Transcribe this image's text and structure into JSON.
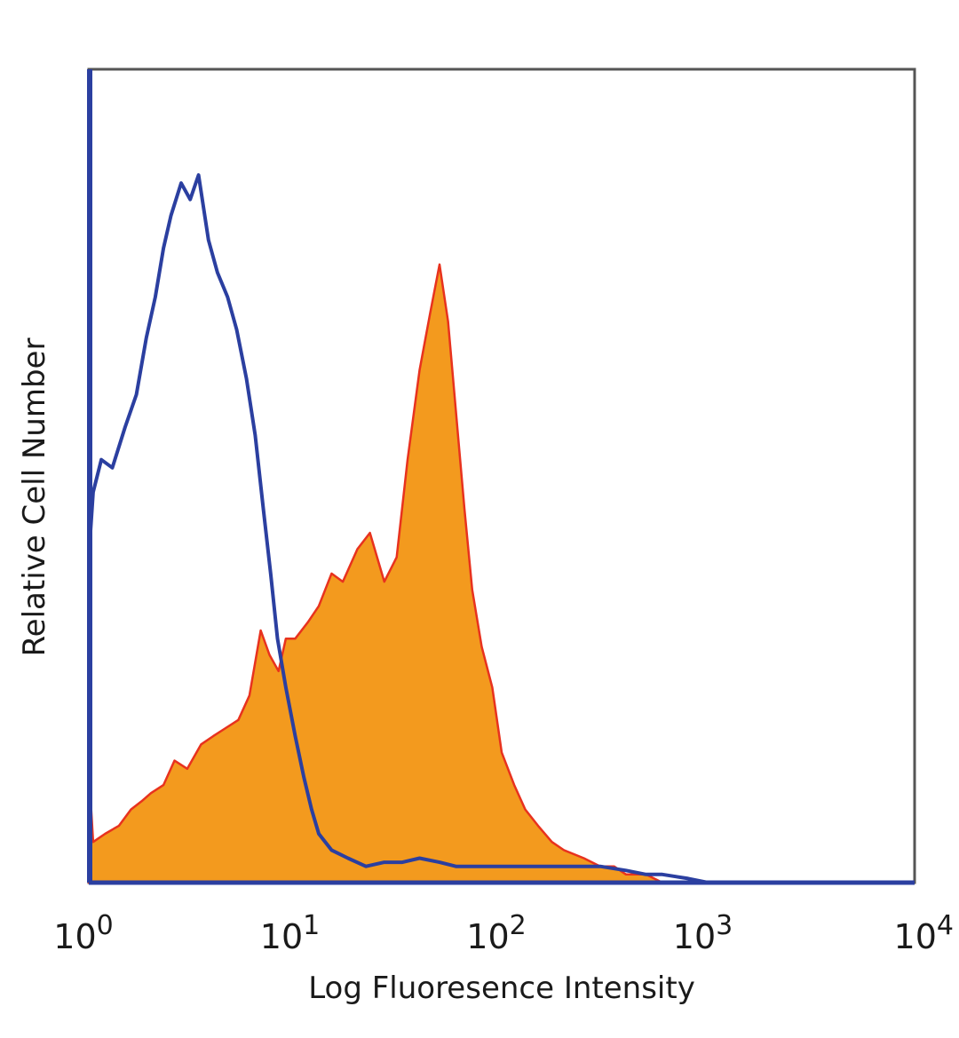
{
  "chart_data": {
    "type": "area",
    "title": "",
    "xlabel": "Log Fluoresence Intensity",
    "ylabel": "Relative Cell Number",
    "x_scale": "log",
    "xlim": [
      1,
      10000
    ],
    "ylim": [
      0,
      100
    ],
    "grid": false,
    "legend": "none",
    "x_ticks": [
      {
        "value": 1,
        "base": "10",
        "exp": "0"
      },
      {
        "value": 10,
        "base": "10",
        "exp": "1"
      },
      {
        "value": 100,
        "base": "10",
        "exp": "2"
      },
      {
        "value": 1000,
        "base": "10",
        "exp": "3"
      },
      {
        "value": 10000,
        "base": "10",
        "exp": "4"
      }
    ],
    "series": [
      {
        "style": "filled",
        "color": "#f39a1e",
        "edge_color": "#e8321e",
        "x": [
          1,
          1.05,
          1.2,
          1.4,
          1.6,
          1.8,
          2.0,
          2.3,
          2.6,
          3.0,
          3.5,
          4.0,
          4.6,
          5.3,
          6.0,
          6.8,
          7.5,
          8.3,
          9.0,
          10,
          11.5,
          13,
          15,
          17,
          20,
          23,
          27,
          31,
          35,
          40,
          45,
          50,
          55,
          60,
          66,
          72,
          80,
          90,
          100,
          115,
          130,
          150,
          175,
          200,
          250,
          300,
          350,
          400,
          500,
          600
        ],
        "y": [
          14,
          5,
          6,
          7,
          9,
          10,
          11,
          12,
          15,
          14,
          17,
          18,
          19,
          20,
          23,
          31,
          28,
          26,
          30,
          30,
          32,
          34,
          38,
          37,
          41,
          43,
          37,
          40,
          52,
          63,
          70,
          76,
          69,
          58,
          46,
          36,
          29,
          24,
          16,
          12,
          9,
          7,
          5,
          4,
          3,
          2,
          2,
          1,
          1,
          0
        ]
      },
      {
        "style": "outline",
        "color": "#2b3fa0",
        "x": [
          1,
          1.05,
          1.15,
          1.3,
          1.5,
          1.7,
          1.9,
          2.1,
          2.3,
          2.5,
          2.8,
          3.1,
          3.4,
          3.8,
          4.2,
          4.7,
          5.2,
          5.8,
          6.4,
          7.0,
          7.6,
          8.2,
          9.0,
          10,
          11,
          12,
          13,
          15,
          18,
          22,
          27,
          33,
          40,
          50,
          60,
          75,
          90,
          110,
          140,
          180,
          230,
          300,
          400,
          500,
          600,
          800,
          1000
        ],
        "y": [
          40,
          48,
          52,
          51,
          56,
          60,
          67,
          72,
          78,
          82,
          86,
          84,
          87,
          79,
          75,
          72,
          68,
          62,
          55,
          46,
          38,
          30,
          24,
          18,
          13,
          9,
          6,
          4,
          3,
          2,
          2.5,
          2.5,
          3,
          2.5,
          2,
          2,
          2,
          2,
          2,
          2,
          2,
          2,
          1.5,
          1,
          1,
          0.5,
          0
        ]
      }
    ]
  }
}
